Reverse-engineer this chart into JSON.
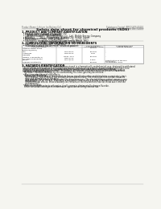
{
  "bg_color": "#f5f5f0",
  "header_left": "Product Name: Lithium Ion Battery Cell",
  "header_right_line1": "Substance Control: BRSO-SDS-00010",
  "header_right_line2": "Established / Revision: Dec.7,2016",
  "title": "Safety data sheet for chemical products (SDS)",
  "section1_title": "1. PRODUCT AND COMPANY IDENTIFICATION",
  "section1_lines": [
    "  • Product name: Lithium Ion Battery Cell",
    "  • Product code: Cylindrical-type cell",
    "       04186500, 04186500, 04186504",
    "  • Company name:      Benergy Electric Co., Ltd., Mobile Energy Company",
    "  • Address:        2021, Kannan-kun, Suzhou City, Hyogo, Japan",
    "  • Telephone number:    +81-1769-26-4111",
    "  • Fax number:      +81-1769-26-4120",
    "  • Emergency telephone number (daytime): +81-769-26-3662",
    "                           (Night and holiday): +81-769-26-4101"
  ],
  "section2_title": "2. COMPOSITION / INFORMATION ON INGREDIENTS",
  "section2_intro": "  • Substance or preparation: Preparation",
  "section2_sub": "  • Information about the chemical nature of product:",
  "table_col_headers_row1": [
    "Chemical chemical name /",
    "CAS number",
    "Concentration /",
    "Classification and"
  ],
  "table_col_headers_row2": [
    "Common name",
    "",
    "Concentration range",
    "hazard labeling"
  ],
  "table_rows": [
    [
      "Lithium cobalt oxide",
      "",
      "30-60%",
      ""
    ],
    [
      "(LiMn/Co)(NiO2)",
      "",
      "",
      ""
    ],
    [
      "Iron",
      "7439-89-6",
      "15-25%",
      "-"
    ],
    [
      "Aluminum",
      "7429-90-5",
      "2-5%",
      "-"
    ],
    [
      "Graphite",
      "",
      "",
      ""
    ],
    [
      "(Mixed in graphite-1)",
      "77631-40-5",
      "10-25%",
      "-"
    ],
    [
      "(All kind of graphite)",
      "7782-42-5",
      "",
      ""
    ],
    [
      "Copper",
      "7440-50-8",
      "5-15%",
      "Sensitization of the skin\ngroup No.2"
    ],
    [
      "Organic electrolyte",
      "-",
      "10-20%",
      "Inflammable liquid"
    ]
  ],
  "section3_title": "3. HAZARDS IDENTIFICATION",
  "section3_text": [
    "  For the battery cell, chemical substances are stored in a hermetically sealed metal case, designed to withstand",
    "  temperatures and pressure-level conditions during normal use, as a result, during normal use, there is no",
    "  physical danger of ignition or explosion and there is danger of hazardous materials leakage.",
    "    However, if exposed to a fire, added mechanical shocks, decomposed, when electrolyte may leak or",
    "  the gas release cannot be operated. The battery cell case will be breached of fire-proteins, hazardous",
    "  materials may be released.",
    "    Moreover, if heated strongly by the surrounding fire, toxic gas may be emitted.",
    "",
    "  • Most important hazard and effects:",
    "    Human health effects:",
    "      Inhalation: The release of the electrolyte has an anesthesia action and stimulates a respiratory tract.",
    "      Skin contact: The release of the electrolyte stimulates a skin. The electrolyte skin contact causes a",
    "      sore and stimulation on the skin.",
    "      Eye contact: The release of the electrolyte stimulates eyes. The electrolyte eye contact causes a sore",
    "      and stimulation on the eye. Especially, a substance that causes a strong inflammation of the eyes is",
    "      contained.",
    "      Environmental effects: Since a battery cell remains in the environment, do not throw out it into the",
    "      environment.",
    "",
    "  • Specific hazards:",
    "    If the electrolyte contacts with water, it will generate detrimental hydrogen fluoride.",
    "    Since the used electrolyte is inflammable liquid, do not bring close to fire."
  ],
  "footer_line": true
}
